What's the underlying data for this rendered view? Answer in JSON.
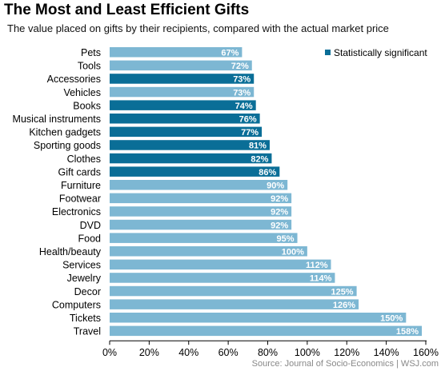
{
  "chart_data": {
    "type": "bar",
    "orientation": "horizontal",
    "title": "The Most and Least Efficient Gifts",
    "subtitle": "The value placed on gifts by their recipients, compared with the actual market price",
    "categories": [
      "Pets",
      "Tools",
      "Accessories",
      "Vehicles",
      "Books",
      "Musical instruments",
      "Kitchen gadgets",
      "Sporting goods",
      "Clothes",
      "Gift cards",
      "Furniture",
      "Footwear",
      "Electronics",
      "DVD",
      "Food",
      "Health/beauty",
      "Services",
      "Jewelry",
      "Decor",
      "Computers",
      "Tickets",
      "Travel"
    ],
    "values": [
      67,
      72,
      73,
      73,
      74,
      76,
      77,
      81,
      82,
      86,
      90,
      92,
      92,
      92,
      95,
      100,
      112,
      114,
      125,
      126,
      150,
      158
    ],
    "value_labels": [
      "67%",
      "72%",
      "73%",
      "73%",
      "74%",
      "76%",
      "77%",
      "81%",
      "82%",
      "86%",
      "90%",
      "92%",
      "92%",
      "92%",
      "95%",
      "100%",
      "112%",
      "114%",
      "125%",
      "126%",
      "150%",
      "158%"
    ],
    "significant": [
      false,
      false,
      true,
      false,
      true,
      true,
      true,
      true,
      true,
      true,
      false,
      false,
      false,
      false,
      false,
      false,
      false,
      false,
      false,
      false,
      false,
      false
    ],
    "xlim": [
      0,
      160
    ],
    "xticks": [
      "0%",
      "20%",
      "40%",
      "60%",
      "80%",
      "100%",
      "120%",
      "140%",
      "160%"
    ],
    "xtick_values": [
      0,
      20,
      40,
      60,
      80,
      100,
      120,
      140,
      160
    ],
    "legend": {
      "label": "Statistically significant",
      "position": "top-right"
    },
    "colors": {
      "significant": "#0a6e97",
      "normal": "#7db7d3",
      "axis": "#000000"
    },
    "grid": false
  },
  "source": "Source: Journal of Socio-Economics  |  WSJ.com"
}
